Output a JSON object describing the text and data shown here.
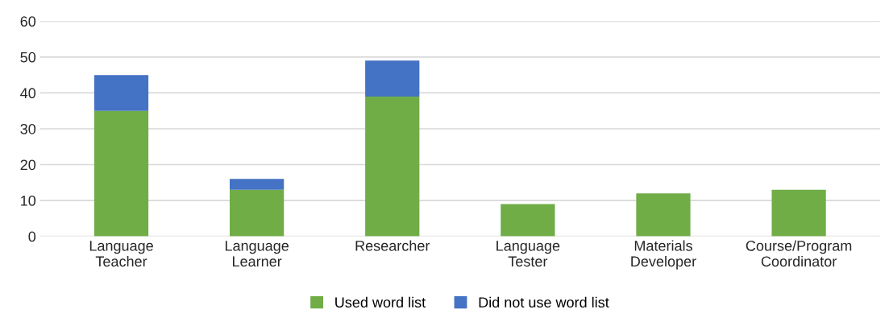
{
  "chart_data": {
    "type": "bar",
    "stacked": true,
    "categories": [
      "Language\nTeacher",
      "Language\nLearner",
      "Researcher",
      "Language\nTester",
      "Materials\nDeveloper",
      "Course/Program\nCoordinator"
    ],
    "series": [
      {
        "name": "Used word list",
        "color": "#70ad47",
        "values": [
          35,
          13,
          39,
          9,
          12,
          13
        ]
      },
      {
        "name": "Did not use word list",
        "color": "#4472c4",
        "values": [
          10,
          3,
          10,
          0,
          0,
          0
        ]
      }
    ],
    "ylim": [
      0,
      60
    ],
    "yticks": [
      0,
      10,
      20,
      30,
      40,
      50,
      60
    ],
    "grid": "y",
    "legend": "bottom"
  }
}
